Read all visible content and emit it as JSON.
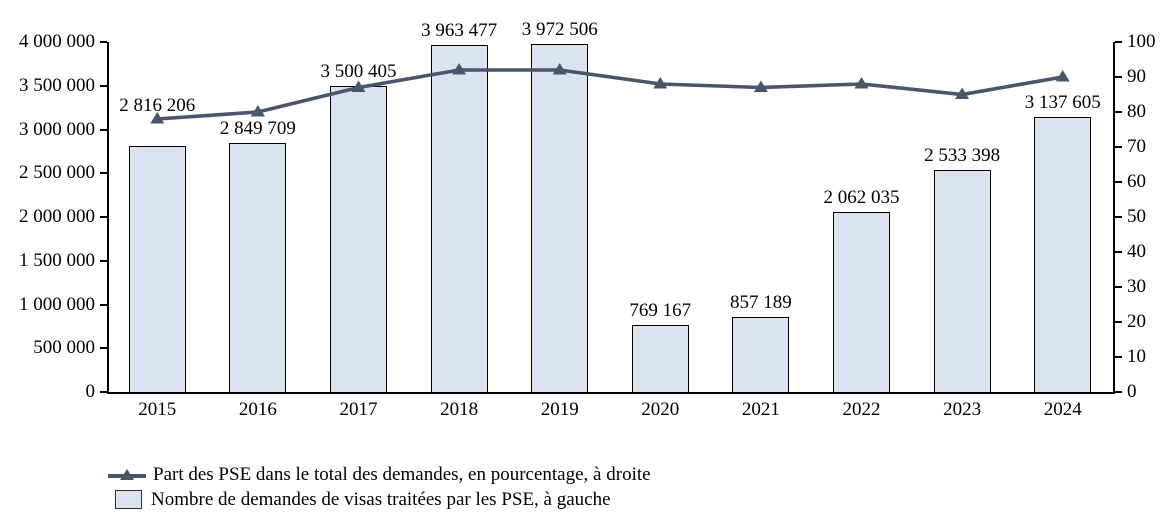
{
  "chart_data": {
    "type": "combo",
    "title": "",
    "categories": [
      "2015",
      "2016",
      "2017",
      "2018",
      "2019",
      "2020",
      "2021",
      "2022",
      "2023",
      "2024"
    ],
    "series": [
      {
        "name": "Nombre de demandes de visas traitées par les PSE, à gauche",
        "type": "bar",
        "axis": "left",
        "values": [
          2816206,
          2849709,
          3500405,
          3963477,
          3972506,
          769167,
          857189,
          2062035,
          2533398,
          3137605
        ],
        "value_labels": [
          "2 816 206",
          "2 849 709",
          "3 500 405",
          "3 963 477",
          "3 972 506",
          "769 167",
          "857 189",
          "2 062 035",
          "2 533 398",
          "3 137 605"
        ],
        "fill_color": "#dce3f0",
        "border_color": "#000000"
      },
      {
        "name": "Part des PSE dans le total des demandes, en pourcentage, à droite",
        "type": "line",
        "axis": "right",
        "marker": "triangle",
        "values": [
          78,
          80,
          87,
          92,
          92,
          88,
          87,
          88,
          85,
          90
        ],
        "color": "#47566a"
      }
    ],
    "left_axis": {
      "min": 0,
      "max": 4000000,
      "step": 500000,
      "tick_labels": [
        "4 000 000",
        "3 500 000",
        "3 000 000",
        "2 500 000",
        "2 000 000",
        "1 500 000",
        "1 000 000",
        "500 000",
        "0"
      ]
    },
    "right_axis": {
      "min": 0,
      "max": 100,
      "step": 10,
      "tick_labels": [
        "100",
        "90",
        "80",
        "70",
        "60",
        "50",
        "40",
        "30",
        "20",
        "10",
        "0"
      ]
    },
    "legend": {
      "position": "bottom-left"
    },
    "grid": "off"
  }
}
